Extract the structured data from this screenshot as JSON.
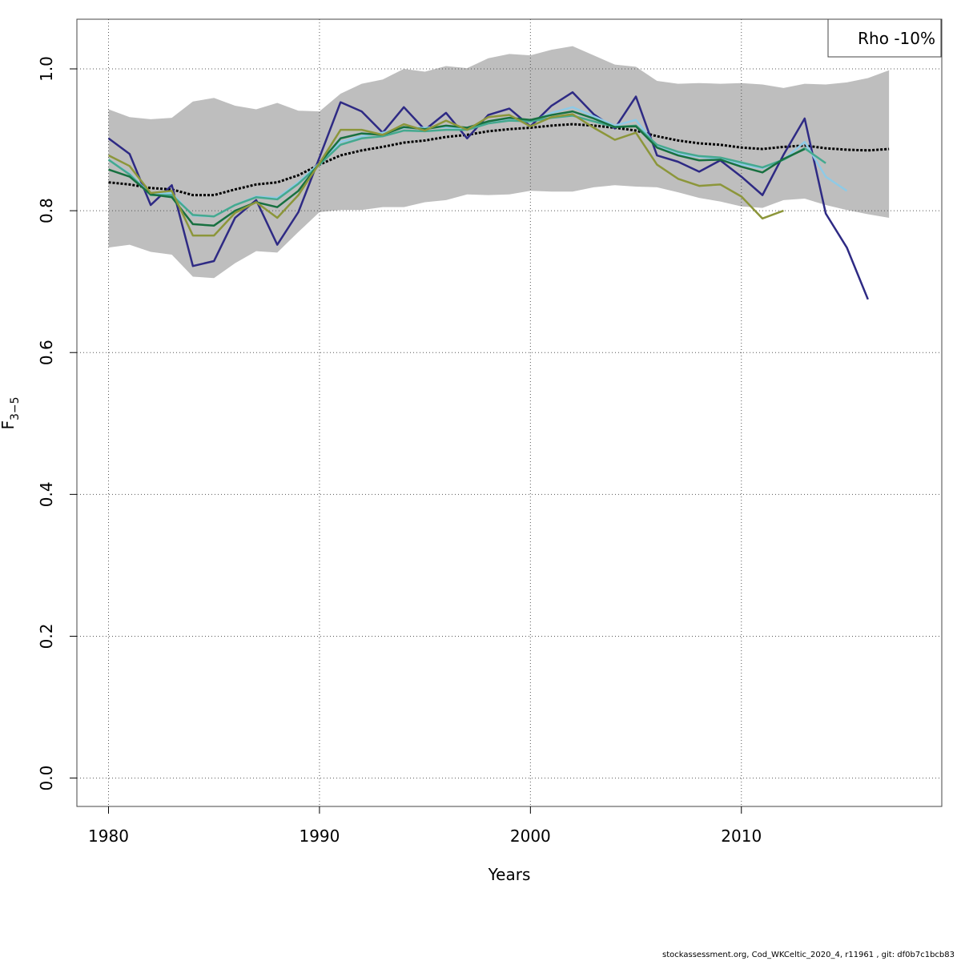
{
  "chart_data": {
    "type": "line",
    "title": "",
    "xlabel": "Years",
    "ylabel_main": "F",
    "ylabel_sub": "3−5",
    "xlim": [
      1978.5,
      2019.5
    ],
    "ylim": [
      -0.04,
      1.07
    ],
    "xticks": [
      1980,
      1990,
      2000,
      2010
    ],
    "xtick_labels": [
      "1980",
      "1990",
      "2000",
      "2010"
    ],
    "yticks": [
      0.0,
      0.2,
      0.4,
      0.6,
      0.8,
      1.0
    ],
    "ytick_labels": [
      "0.0",
      "0.2",
      "0.4",
      "0.6",
      "0.8",
      "1.0"
    ],
    "grid": true,
    "legend": {
      "position": "top-right",
      "entries": [
        "Rho -10%"
      ]
    },
    "band": {
      "x": [
        1980,
        1981,
        1982,
        1983,
        1984,
        1985,
        1986,
        1987,
        1988,
        1989,
        1990,
        1991,
        1992,
        1993,
        1994,
        1995,
        1996,
        1997,
        1998,
        1999,
        2000,
        2001,
        2002,
        2003,
        2004,
        2005,
        2006,
        2007,
        2008,
        2009,
        2010,
        2011,
        2012,
        2013,
        2014,
        2015,
        2016,
        2017
      ],
      "upper": [
        0.943,
        0.932,
        0.929,
        0.931,
        0.954,
        0.959,
        0.948,
        0.943,
        0.952,
        0.941,
        0.94,
        0.965,
        0.979,
        0.985,
        1.0,
        0.996,
        1.004,
        1.001,
        1.015,
        1.021,
        1.019,
        1.027,
        1.032,
        1.019,
        1.006,
        1.003,
        0.983,
        0.979,
        0.98,
        0.979,
        0.98,
        0.978,
        0.973,
        0.979,
        0.978,
        0.981,
        0.987,
        0.998
      ],
      "lower": [
        0.748,
        0.752,
        0.742,
        0.738,
        0.707,
        0.705,
        0.726,
        0.743,
        0.741,
        0.77,
        0.798,
        0.801,
        0.801,
        0.805,
        0.805,
        0.812,
        0.815,
        0.823,
        0.822,
        0.823,
        0.828,
        0.827,
        0.827,
        0.833,
        0.836,
        0.834,
        0.833,
        0.826,
        0.818,
        0.813,
        0.806,
        0.804,
        0.815,
        0.817,
        0.808,
        0.801,
        0.795,
        0.79
      ],
      "color": "#bebebe"
    },
    "series": [
      {
        "x": [
          1980,
          1981,
          1982,
          1983,
          1984,
          1985,
          1986,
          1987,
          1988,
          1989,
          1990,
          1991,
          1992,
          1993,
          1994,
          1995,
          1996,
          1997,
          1998,
          1999,
          2000,
          2001,
          2002,
          2003,
          2004,
          2005,
          2006,
          2007,
          2008,
          2009,
          2010,
          2011,
          2012,
          2013,
          2014,
          2015,
          2016,
          2017
        ],
        "values": [
          0.84,
          0.837,
          0.832,
          0.83,
          0.822,
          0.822,
          0.83,
          0.837,
          0.84,
          0.85,
          0.865,
          0.878,
          0.885,
          0.89,
          0.896,
          0.899,
          0.904,
          0.907,
          0.912,
          0.915,
          0.917,
          0.92,
          0.922,
          0.92,
          0.917,
          0.913,
          0.905,
          0.899,
          0.895,
          0.893,
          0.889,
          0.887,
          0.89,
          0.892,
          0.888,
          0.886,
          0.885,
          0.887
        ],
        "color": "#000000",
        "dashed": true
      },
      {
        "x": [
          1980,
          1981,
          1982,
          1983,
          1984,
          1985,
          1986,
          1987,
          1988,
          1989,
          1990,
          1991,
          1992,
          1993,
          1994,
          1995,
          1996,
          1997,
          1998,
          1999,
          2000,
          2001,
          2002,
          2003,
          2004,
          2005,
          2006,
          2007,
          2008,
          2009,
          2010,
          2011,
          2012,
          2013,
          2014,
          2015,
          2016
        ],
        "values": [
          0.902,
          0.88,
          0.808,
          0.836,
          0.722,
          0.729,
          0.79,
          0.815,
          0.752,
          0.798,
          0.875,
          0.953,
          0.94,
          0.91,
          0.946,
          0.914,
          0.938,
          0.902,
          0.935,
          0.944,
          0.919,
          0.948,
          0.967,
          0.936,
          0.916,
          0.961,
          0.878,
          0.869,
          0.855,
          0.871,
          0.848,
          0.822,
          0.879,
          0.93,
          0.796,
          0.748,
          0.675
        ],
        "color": "#2e2a84"
      },
      {
        "x": [
          1980,
          1981,
          1982,
          1983,
          1984,
          1985,
          1986,
          1987,
          1988,
          1989,
          1990,
          1991,
          1992,
          1993,
          1994,
          1995,
          1996,
          1997,
          1998,
          1999,
          2000,
          2001,
          2002,
          2003,
          2004,
          2005,
          2006,
          2007,
          2008,
          2009,
          2010,
          2011,
          2012,
          2013,
          2014,
          2015
        ],
        "values": [
          0.872,
          0.852,
          0.823,
          0.825,
          0.793,
          0.792,
          0.808,
          0.82,
          0.818,
          0.84,
          0.867,
          0.897,
          0.905,
          0.91,
          0.917,
          0.917,
          0.918,
          0.915,
          0.926,
          0.93,
          0.925,
          0.938,
          0.946,
          0.933,
          0.92,
          0.928,
          0.89,
          0.88,
          0.876,
          0.873,
          0.865,
          0.86,
          0.872,
          0.897,
          0.848,
          0.828
        ],
        "color": "#8ecae6"
      },
      {
        "x": [
          1980,
          1981,
          1982,
          1983,
          1984,
          1985,
          1986,
          1987,
          1988,
          1989,
          1990,
          1991,
          1992,
          1993,
          1994,
          1995,
          1996,
          1997,
          1998,
          1999,
          2000,
          2001,
          2002,
          2003,
          2004,
          2005,
          2006,
          2007,
          2008,
          2009,
          2010,
          2011,
          2012,
          2013,
          2014
        ],
        "values": [
          0.872,
          0.851,
          0.822,
          0.822,
          0.794,
          0.792,
          0.808,
          0.819,
          0.816,
          0.838,
          0.865,
          0.893,
          0.902,
          0.905,
          0.913,
          0.912,
          0.914,
          0.914,
          0.923,
          0.927,
          0.926,
          0.931,
          0.934,
          0.926,
          0.918,
          0.92,
          0.893,
          0.883,
          0.877,
          0.875,
          0.868,
          0.861,
          0.872,
          0.888,
          0.867
        ],
        "color": "#44a98f"
      },
      {
        "x": [
          1980,
          1981,
          1982,
          1983,
          1984,
          1985,
          1986,
          1987,
          1988,
          1989,
          1990,
          1991,
          1992,
          1993,
          1994,
          1995,
          1996,
          1997,
          1998,
          1999,
          2000,
          2001,
          2002,
          2003,
          2004,
          2005,
          2006,
          2007,
          2008,
          2009,
          2010,
          2011,
          2012,
          2013
        ],
        "values": [
          0.858,
          0.848,
          0.823,
          0.819,
          0.781,
          0.779,
          0.8,
          0.812,
          0.805,
          0.828,
          0.867,
          0.902,
          0.909,
          0.907,
          0.918,
          0.915,
          0.92,
          0.917,
          0.926,
          0.931,
          0.928,
          0.935,
          0.94,
          0.93,
          0.918,
          0.919,
          0.889,
          0.878,
          0.871,
          0.872,
          0.862,
          0.854,
          0.873,
          0.887
        ],
        "color": "#187040"
      },
      {
        "x": [
          1980,
          1981,
          1982,
          1983,
          1984,
          1985,
          1986,
          1987,
          1988,
          1989,
          1990,
          1991,
          1992,
          1993,
          1994,
          1995,
          1996,
          1997,
          1998,
          1999,
          2000,
          2001,
          2002,
          2003,
          2004,
          2005,
          2006,
          2007,
          2008,
          2009,
          2010,
          2011,
          2012
        ],
        "values": [
          0.878,
          0.863,
          0.825,
          0.828,
          0.765,
          0.765,
          0.797,
          0.812,
          0.79,
          0.822,
          0.867,
          0.914,
          0.914,
          0.907,
          0.922,
          0.913,
          0.927,
          0.914,
          0.932,
          0.935,
          0.919,
          0.932,
          0.936,
          0.917,
          0.9,
          0.91,
          0.865,
          0.845,
          0.835,
          0.837,
          0.82,
          0.789,
          0.8
        ],
        "color": "#8c963a"
      }
    ]
  },
  "footer": "stockassessment.org, Cod_WKCeltic_2020_4, r11961 , git: df0b7c1bcb83"
}
